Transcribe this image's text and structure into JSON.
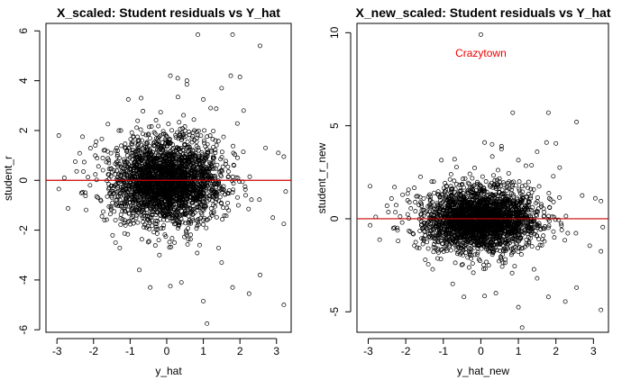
{
  "chart_data": [
    {
      "type": "scatter",
      "title": "X_scaled: Student residuals vs Y_hat",
      "xlabel": "y_hat",
      "ylabel": "student_r",
      "xlim": [
        -3.3,
        3.4
      ],
      "ylim": [
        -6.1,
        6.3
      ],
      "xticks": [
        -3,
        -2,
        -1,
        0,
        1,
        2,
        3
      ],
      "yticks": [
        -6,
        -4,
        -2,
        0,
        2,
        4,
        6
      ],
      "reference_line": {
        "y": 0,
        "color": "#cc0000"
      },
      "marker_color": "#000000",
      "cloud": {
        "n": 2600,
        "x_center": 0.0,
        "x_sd": 0.75,
        "y_sd": 0.85,
        "seed": 7
      },
      "points": [
        {
          "x": 0.85,
          "y": 5.85
        },
        {
          "x": 1.8,
          "y": 5.85
        },
        {
          "x": 2.55,
          "y": 5.4
        },
        {
          "x": 0.1,
          "y": 4.2
        },
        {
          "x": 0.3,
          "y": 4.1
        },
        {
          "x": 0.55,
          "y": 4.0
        },
        {
          "x": 0.55,
          "y": 3.85
        },
        {
          "x": 1.75,
          "y": 4.2
        },
        {
          "x": 2.0,
          "y": 4.15
        },
        {
          "x": 1.5,
          "y": 3.7
        },
        {
          "x": -0.7,
          "y": 3.3
        },
        {
          "x": -1.05,
          "y": 3.25
        },
        {
          "x": 1.0,
          "y": 3.25
        },
        {
          "x": 2.1,
          "y": 2.8
        },
        {
          "x": 1.2,
          "y": 2.9
        },
        {
          "x": -2.95,
          "y": 1.8
        },
        {
          "x": -2.3,
          "y": 1.75
        },
        {
          "x": -2.5,
          "y": 0.75
        },
        {
          "x": -2.8,
          "y": 0.1
        },
        {
          "x": 3.05,
          "y": 1.1
        },
        {
          "x": 3.2,
          "y": 0.95
        },
        {
          "x": 3.25,
          "y": -0.45
        },
        {
          "x": 3.2,
          "y": -1.75
        },
        {
          "x": -2.95,
          "y": -0.35
        },
        {
          "x": -1.4,
          "y": -2.5
        },
        {
          "x": 0.4,
          "y": -4.1
        },
        {
          "x": 0.1,
          "y": -4.25
        },
        {
          "x": -0.45,
          "y": -4.3
        },
        {
          "x": -0.75,
          "y": -3.6
        },
        {
          "x": 1.8,
          "y": -4.3
        },
        {
          "x": 2.25,
          "y": -4.55
        },
        {
          "x": 1.0,
          "y": -4.85
        },
        {
          "x": 3.2,
          "y": -5.0
        },
        {
          "x": 1.1,
          "y": -5.75
        },
        {
          "x": 2.55,
          "y": -3.8
        },
        {
          "x": 1.5,
          "y": -3.3
        },
        {
          "x": -0.2,
          "y": -3.0
        },
        {
          "x": 0.9,
          "y": -2.6
        },
        {
          "x": 2.9,
          "y": -1.5
        },
        {
          "x": -1.7,
          "y": -1.6
        },
        {
          "x": 2.7,
          "y": 1.3
        },
        {
          "x": -1.95,
          "y": 1.4
        }
      ]
    },
    {
      "type": "scatter",
      "title": "X_new_scaled: Student residuals vs Y_hat",
      "xlabel": "y_hat_new",
      "ylabel": "student_r_new",
      "xlim": [
        -3.3,
        3.4
      ],
      "ylim": [
        -6.1,
        10.5
      ],
      "xticks": [
        -3,
        -2,
        -1,
        0,
        1,
        2,
        3
      ],
      "yticks": [
        -5,
        0,
        5,
        10
      ],
      "reference_line": {
        "y": 0,
        "color": "#cc0000"
      },
      "marker_color": "#000000",
      "annotation": {
        "text": "Crazytown",
        "x": 0.0,
        "y": 8.9,
        "color": "#ee0000"
      },
      "cloud": {
        "n": 2600,
        "x_center": 0.0,
        "x_sd": 0.75,
        "y_sd": 0.85,
        "seed": 7
      },
      "points": [
        {
          "x": 0.0,
          "y": 9.9
        },
        {
          "x": 0.85,
          "y": 5.7
        },
        {
          "x": 1.8,
          "y": 5.7
        },
        {
          "x": 2.55,
          "y": 5.2
        },
        {
          "x": 0.1,
          "y": 4.1
        },
        {
          "x": 0.3,
          "y": 4.0
        },
        {
          "x": 0.55,
          "y": 3.9
        },
        {
          "x": 0.55,
          "y": 3.75
        },
        {
          "x": 1.75,
          "y": 4.1
        },
        {
          "x": 2.0,
          "y": 4.05
        },
        {
          "x": 1.5,
          "y": 3.6
        },
        {
          "x": -0.7,
          "y": 3.2
        },
        {
          "x": -1.05,
          "y": 3.15
        },
        {
          "x": 1.0,
          "y": 3.15
        },
        {
          "x": 2.1,
          "y": 2.75
        },
        {
          "x": 1.2,
          "y": 2.85
        },
        {
          "x": -2.95,
          "y": 1.75
        },
        {
          "x": -2.3,
          "y": 1.7
        },
        {
          "x": -2.5,
          "y": 0.7
        },
        {
          "x": -2.8,
          "y": 0.1
        },
        {
          "x": 3.05,
          "y": 1.1
        },
        {
          "x": 3.2,
          "y": 0.95
        },
        {
          "x": 3.25,
          "y": -0.45
        },
        {
          "x": 3.2,
          "y": -1.75
        },
        {
          "x": -2.95,
          "y": -0.35
        },
        {
          "x": -1.4,
          "y": -2.45
        },
        {
          "x": 0.4,
          "y": -4.0
        },
        {
          "x": 0.1,
          "y": -4.15
        },
        {
          "x": -0.45,
          "y": -4.2
        },
        {
          "x": -0.75,
          "y": -3.5
        },
        {
          "x": 1.8,
          "y": -4.2
        },
        {
          "x": 2.25,
          "y": -4.45
        },
        {
          "x": 1.0,
          "y": -4.75
        },
        {
          "x": 3.2,
          "y": -4.9
        },
        {
          "x": 1.1,
          "y": -5.85
        },
        {
          "x": 2.55,
          "y": -3.7
        },
        {
          "x": 1.5,
          "y": -3.2
        },
        {
          "x": -0.2,
          "y": -2.9
        },
        {
          "x": 0.9,
          "y": -2.55
        },
        {
          "x": 2.9,
          "y": -1.45
        },
        {
          "x": -1.7,
          "y": -1.55
        },
        {
          "x": 2.7,
          "y": 1.25
        },
        {
          "x": -1.95,
          "y": 1.35
        }
      ]
    }
  ]
}
